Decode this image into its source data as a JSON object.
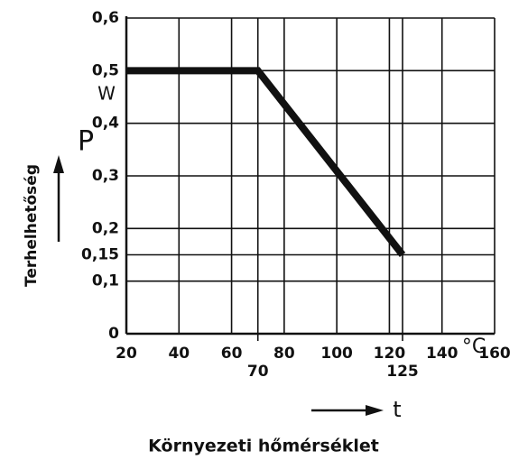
{
  "chart_data": {
    "type": "line",
    "y_label": "Terhelhetőség",
    "y_symbol": "P",
    "y_unit": "W",
    "x_label": "Környezeti hőmérséklet",
    "x_symbol": "t",
    "x_unit": "°C",
    "x": [
      20,
      70,
      125
    ],
    "series": [
      {
        "color": "#111111",
        "values": [
          0.5,
          0.5,
          0.15
        ]
      }
    ],
    "xlim": [
      20,
      160
    ],
    "xticks": [
      20,
      40,
      60,
      80,
      100,
      120,
      140,
      160
    ],
    "xticks_secondary": [
      70,
      125
    ],
    "ylim": [
      0,
      0.6
    ],
    "yticks": [
      {
        "value": 0,
        "label": "0"
      },
      {
        "value": 0.1,
        "label": "0,1"
      },
      {
        "value": 0.15,
        "label": "0,15"
      },
      {
        "value": 0.2,
        "label": "0,2"
      },
      {
        "value": 0.3,
        "label": "0,3"
      },
      {
        "value": 0.4,
        "label": "0,4"
      },
      {
        "value": 0.5,
        "label": "0,5"
      },
      {
        "value": 0.6,
        "label": "0,6"
      }
    ],
    "grid": true
  }
}
